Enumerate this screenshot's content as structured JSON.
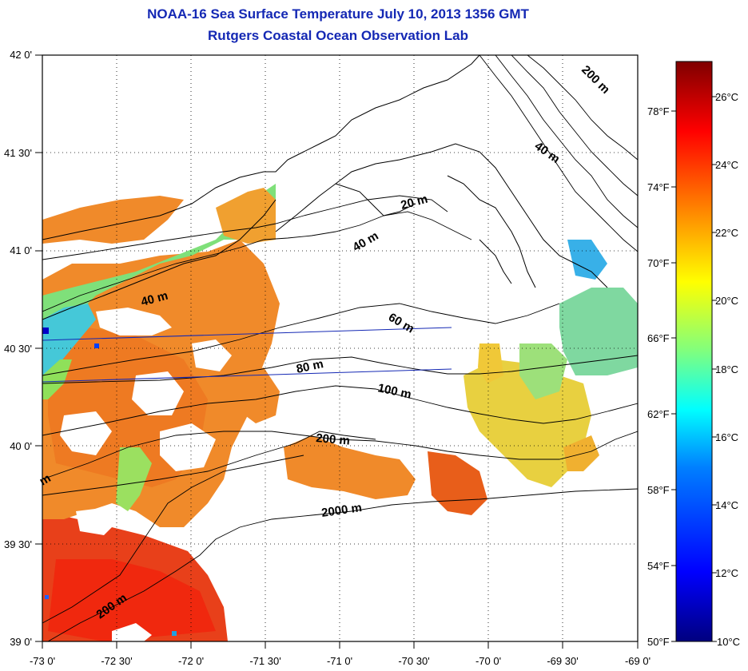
{
  "title": {
    "line1": "NOAA-16 Sea Surface Temperature July 10, 2013 1356 GMT",
    "line2": "Rutgers Coastal Ocean Observation Lab"
  },
  "map": {
    "lon_ticks": [
      "-73 0'",
      "-72 30'",
      "-72 0'",
      "-71 30'",
      "-71 0'",
      "-70 30'",
      "-70 0'",
      "-69 30'",
      "-69 0'"
    ],
    "lat_ticks": [
      "42 0'",
      "41 30'",
      "41 0'",
      "40 30'",
      "40 0'",
      "39 30'",
      "39 0'"
    ],
    "contour_labels": [
      "20 m",
      "40 m",
      "40 m",
      "40 m",
      "60 m",
      "80 m",
      "100 m",
      "200 m",
      "200 m",
      "200 m",
      "2000 m",
      "m"
    ]
  },
  "colorbar": {
    "celsius": [
      "26°C",
      "24°C",
      "22°C",
      "20°C",
      "18°C",
      "16°C",
      "14°C",
      "12°C",
      "10°C"
    ],
    "fahrenheit": [
      "78°F",
      "74°F",
      "70°F",
      "66°F",
      "62°F",
      "58°F",
      "54°F",
      "50°F"
    ],
    "colors": [
      "#00007f",
      "#0000ff",
      "#007fff",
      "#00ffff",
      "#7fff7f",
      "#ffff00",
      "#ff7f00",
      "#ff0000",
      "#7f0000"
    ]
  }
}
